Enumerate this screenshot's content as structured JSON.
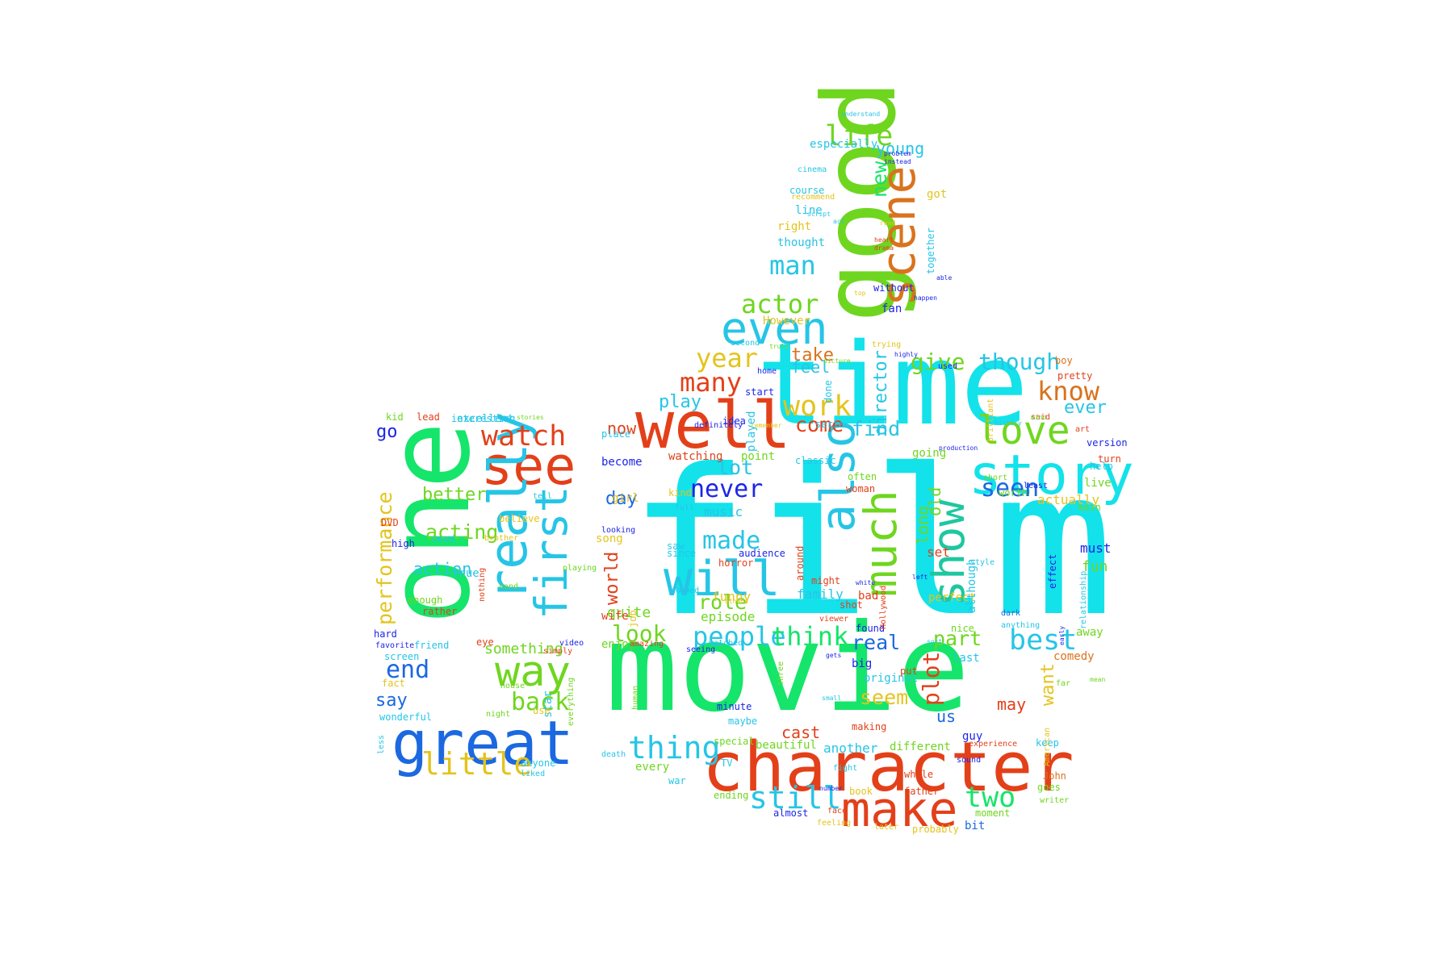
{
  "wordcloud": {
    "shape": "thumbs-up",
    "palette": [
      "#13e2ea",
      "#15e56a",
      "#e3401a",
      "#6fd61f",
      "#1b68e0",
      "#e3c41c",
      "#d9731d",
      "#1c25e8",
      "#26c5e6"
    ],
    "words": [
      {
        "text": "film",
        "color": "#13e2ea"
      },
      {
        "text": "movie",
        "color": "#15e56a"
      },
      {
        "text": "time",
        "color": "#13e2ea"
      },
      {
        "text": "one",
        "color": "#15e56a"
      },
      {
        "text": "good",
        "color": "#6fd61f"
      },
      {
        "text": "character",
        "color": "#e3401a"
      },
      {
        "text": "well",
        "color": "#e3401a"
      },
      {
        "text": "great",
        "color": "#1b68e0"
      },
      {
        "text": "story",
        "color": "#13e2ea"
      },
      {
        "text": "see",
        "color": "#e3401a"
      },
      {
        "text": "really",
        "color": "#26c5e6"
      },
      {
        "text": "also",
        "color": "#26c5e6"
      },
      {
        "text": "make",
        "color": "#e3401a"
      },
      {
        "text": "scene",
        "color": "#d9731d"
      },
      {
        "text": "will",
        "color": "#26c5e6"
      },
      {
        "text": "even",
        "color": "#26c5e6"
      },
      {
        "text": "much",
        "color": "#6fd61f"
      },
      {
        "text": "first",
        "color": "#26c5e6"
      },
      {
        "text": "show",
        "color": "#1ec7a0"
      },
      {
        "text": "love",
        "color": "#6fd61f"
      },
      {
        "text": "way",
        "color": "#6fd61f"
      },
      {
        "text": "little",
        "color": "#e3c41c"
      },
      {
        "text": "watch",
        "color": "#e3401a"
      },
      {
        "text": "life",
        "color": "#6fd61f"
      },
      {
        "text": "people",
        "color": "#26c5e6"
      },
      {
        "text": "best",
        "color": "#26c5e6"
      },
      {
        "text": "made",
        "color": "#26c5e6"
      },
      {
        "text": "still",
        "color": "#26c5e6"
      },
      {
        "text": "two",
        "color": "#15e56a"
      },
      {
        "text": "thing",
        "color": "#26c5e6"
      },
      {
        "text": "actor",
        "color": "#6fd61f"
      },
      {
        "text": "work",
        "color": "#e3c41c"
      },
      {
        "text": "man",
        "color": "#26c5e6"
      },
      {
        "text": "year",
        "color": "#e3c41c"
      },
      {
        "text": "many",
        "color": "#e3401a"
      },
      {
        "text": "know",
        "color": "#d9731d"
      },
      {
        "text": "seen",
        "color": "#1b68e0"
      },
      {
        "text": "think",
        "color": "#15e56a"
      },
      {
        "text": "never",
        "color": "#1c25e8"
      },
      {
        "text": "end",
        "color": "#1b68e0"
      },
      {
        "text": "back",
        "color": "#6fd61f"
      },
      {
        "text": "acting",
        "color": "#6fd61f"
      },
      {
        "text": "performance",
        "color": "#e3c41c"
      },
      {
        "text": "give",
        "color": "#6fd61f"
      },
      {
        "text": "though",
        "color": "#26c5e6"
      },
      {
        "text": "ever",
        "color": "#26c5e6"
      },
      {
        "text": "plot",
        "color": "#e3401a"
      },
      {
        "text": "part",
        "color": "#6fd61f"
      },
      {
        "text": "look",
        "color": "#6fd61f"
      },
      {
        "text": "role",
        "color": "#6fd61f"
      },
      {
        "text": "come",
        "color": "#e3401a"
      },
      {
        "text": "find",
        "color": "#26c5e6"
      },
      {
        "text": "real",
        "color": "#1b68e0"
      },
      {
        "text": "seem",
        "color": "#e3c41c"
      },
      {
        "text": "director",
        "color": "#26c5e6"
      },
      {
        "text": "new",
        "color": "#15e56a"
      },
      {
        "text": "young",
        "color": "#26c5e6"
      },
      {
        "text": "take",
        "color": "#d9731d"
      },
      {
        "text": "lot",
        "color": "#26c5e6"
      },
      {
        "text": "play",
        "color": "#26c5e6"
      },
      {
        "text": "day",
        "color": "#1b68e0"
      },
      {
        "text": "better",
        "color": "#6fd61f"
      },
      {
        "text": "say",
        "color": "#1b68e0"
      },
      {
        "text": "go",
        "color": "#1c25e8"
      },
      {
        "text": "world",
        "color": "#e3401a"
      },
      {
        "text": "now",
        "color": "#e3401a"
      },
      {
        "text": "quite",
        "color": "#6fd61f"
      },
      {
        "text": "action",
        "color": "#26c5e6"
      },
      {
        "text": "want",
        "color": "#e3c41c"
      },
      {
        "text": "us",
        "color": "#1b68e0"
      },
      {
        "text": "may",
        "color": "#e3401a"
      },
      {
        "text": "cast",
        "color": "#e3401a"
      },
      {
        "text": "feel",
        "color": "#26c5e6"
      },
      {
        "text": "long",
        "color": "#6fd61f"
      },
      {
        "text": "old",
        "color": "#6fd61f"
      },
      {
        "text": "something",
        "color": "#6fd61f"
      },
      {
        "text": "actually",
        "color": "#e3c41c"
      },
      {
        "text": "family",
        "color": "#26c5e6"
      },
      {
        "text": "funny",
        "color": "#e3c41c"
      },
      {
        "text": "music",
        "color": "#26c5e6"
      },
      {
        "text": "episode",
        "color": "#6fd61f"
      },
      {
        "text": "set",
        "color": "#e3401a"
      },
      {
        "text": "fun",
        "color": "#6fd61f"
      },
      {
        "text": "must",
        "color": "#1c25e8"
      },
      {
        "text": "interesting",
        "color": "#26c5e6"
      },
      {
        "text": "excellent",
        "color": "#26c5e6"
      },
      {
        "text": "another",
        "color": "#26c5e6"
      },
      {
        "text": "different",
        "color": "#6fd61f"
      },
      {
        "text": "beautiful",
        "color": "#6fd61f"
      },
      {
        "text": "book",
        "color": "#e3c41c"
      },
      {
        "text": "father",
        "color": "#e3401a"
      },
      {
        "text": "whole",
        "color": "#e3401a"
      },
      {
        "text": "guy",
        "color": "#1c25e8"
      },
      {
        "text": "bit",
        "color": "#1b68e0"
      },
      {
        "text": "probably",
        "color": "#e3c41c"
      },
      {
        "text": "moment",
        "color": "#6fd61f"
      },
      {
        "text": "almost",
        "color": "#1c25e8"
      },
      {
        "text": "ending",
        "color": "#6fd61f"
      },
      {
        "text": "every",
        "color": "#6fd61f"
      },
      {
        "text": "war",
        "color": "#26c5e6"
      },
      {
        "text": "TV",
        "color": "#26c5e6"
      },
      {
        "text": "special",
        "color": "#6fd61f"
      },
      {
        "text": "minute",
        "color": "#1c25e8"
      },
      {
        "text": "maybe",
        "color": "#26c5e6"
      },
      {
        "text": "original",
        "color": "#26c5e6"
      },
      {
        "text": "making",
        "color": "#e3401a"
      },
      {
        "text": "big",
        "color": "#1c25e8"
      },
      {
        "text": "found",
        "color": "#1c25e8"
      },
      {
        "text": "put",
        "color": "#e3401a"
      },
      {
        "text": "bad",
        "color": "#e3401a"
      },
      {
        "text": "shot",
        "color": "#e3401a"
      },
      {
        "text": "might",
        "color": "#e3401a"
      },
      {
        "text": "around",
        "color": "#e3401a"
      },
      {
        "text": "perfect",
        "color": "#e3c41c"
      },
      {
        "text": "last",
        "color": "#26c5e6"
      },
      {
        "text": "comedy",
        "color": "#d9731d"
      },
      {
        "text": "away",
        "color": "#6fd61f"
      },
      {
        "text": "keep",
        "color": "#26c5e6"
      },
      {
        "text": "John",
        "color": "#d9731d"
      },
      {
        "text": "goes",
        "color": "#6fd61f"
      },
      {
        "text": "writer",
        "color": "#6fd61f"
      },
      {
        "text": "although",
        "color": "#26c5e6"
      },
      {
        "text": "effect",
        "color": "#1c25e8"
      },
      {
        "text": "anything",
        "color": "#26c5e6"
      },
      {
        "text": "dark",
        "color": "#1b68e0"
      },
      {
        "text": "nice",
        "color": "#6fd61f"
      },
      {
        "text": "Hollywood",
        "color": "#e3401a"
      },
      {
        "text": "woman",
        "color": "#e3401a"
      },
      {
        "text": "girl",
        "color": "#e3c41c"
      },
      {
        "text": "song",
        "color": "#e3c41c"
      },
      {
        "text": "job",
        "color": "#e3c41c"
      },
      {
        "text": "wife",
        "color": "#e3401a"
      },
      {
        "text": "enjoy",
        "color": "#6fd61f"
      },
      {
        "text": "amazing",
        "color": "#e3401a"
      },
      {
        "text": "seeing",
        "color": "#1c25e8"
      },
      {
        "text": "watched",
        "color": "#26c5e6"
      },
      {
        "text": "saw",
        "color": "#26c5e6"
      },
      {
        "text": "since",
        "color": "#26c5e6"
      },
      {
        "text": "loved",
        "color": "#26c5e6"
      },
      {
        "text": "horror",
        "color": "#e3401a"
      },
      {
        "text": "audience",
        "color": "#1c25e8"
      },
      {
        "text": "kind",
        "color": "#e3c41c"
      },
      {
        "text": "full",
        "color": "#26c5e6"
      },
      {
        "text": "point",
        "color": "#6fd61f"
      },
      {
        "text": "classic",
        "color": "#26c5e6"
      },
      {
        "text": "often",
        "color": "#6fd61f"
      },
      {
        "text": "going",
        "color": "#6fd61f"
      },
      {
        "text": "watching",
        "color": "#e3401a"
      },
      {
        "text": "become",
        "color": "#1c25e8"
      },
      {
        "text": "place",
        "color": "#26c5e6"
      },
      {
        "text": "idea",
        "color": "#1c25e8"
      },
      {
        "text": "start",
        "color": "#1c25e8"
      },
      {
        "text": "serie",
        "color": "#26c5e6"
      },
      {
        "text": "done",
        "color": "#26c5e6"
      },
      {
        "text": "home",
        "color": "#1c25e8"
      },
      {
        "text": "played",
        "color": "#26c5e6"
      },
      {
        "text": "definitely",
        "color": "#1c25e8"
      },
      {
        "text": "However",
        "color": "#e3c41c"
      },
      {
        "text": "thought",
        "color": "#26c5e6"
      },
      {
        "text": "right",
        "color": "#e3c41c"
      },
      {
        "text": "line",
        "color": "#26c5e6"
      },
      {
        "text": "course",
        "color": "#26c5e6"
      },
      {
        "text": "especially",
        "color": "#26c5e6"
      },
      {
        "text": "cinema",
        "color": "#26c5e6"
      },
      {
        "text": "recommend",
        "color": "#e3c41c"
      },
      {
        "text": "without",
        "color": "#1c25e8"
      },
      {
        "text": "fan",
        "color": "#1c25e8"
      },
      {
        "text": "together",
        "color": "#26c5e6"
      },
      {
        "text": "got",
        "color": "#e3c41c"
      },
      {
        "text": "second",
        "color": "#26c5e6"
      },
      {
        "text": "trying",
        "color": "#e3c41c"
      },
      {
        "text": "pretty",
        "color": "#e3401a"
      },
      {
        "text": "boy",
        "color": "#d9731d"
      },
      {
        "text": "used",
        "color": "#1c25e8"
      },
      {
        "text": "turn",
        "color": "#e3401a"
      },
      {
        "text": "version",
        "color": "#1c25e8"
      },
      {
        "text": "help",
        "color": "#26c5e6"
      },
      {
        "text": "live",
        "color": "#6fd61f"
      },
      {
        "text": "worth",
        "color": "#6fd61f"
      },
      {
        "text": "least",
        "color": "#1c25e8"
      },
      {
        "text": "said",
        "color": "#e3401a"
      },
      {
        "text": "art",
        "color": "#e3401a"
      },
      {
        "text": "main",
        "color": "#6fd61f"
      },
      {
        "text": "relationship",
        "color": "#26c5e6"
      },
      {
        "text": "far",
        "color": "#6fd61f"
      },
      {
        "text": "American",
        "color": "#e3c41c"
      },
      {
        "text": "experience",
        "color": "#e3401a"
      },
      {
        "text": "sound",
        "color": "#1c25e8"
      },
      {
        "text": "three",
        "color": "#6fd61f"
      },
      {
        "text": "fight",
        "color": "#26c5e6"
      },
      {
        "text": "face",
        "color": "#e3401a"
      },
      {
        "text": "feeling",
        "color": "#e3c41c"
      },
      {
        "text": "later",
        "color": "#e3c41c"
      },
      {
        "text": "death",
        "color": "#26c5e6"
      },
      {
        "text": "rather",
        "color": "#e3401a"
      },
      {
        "text": "enough",
        "color": "#6fd61f"
      },
      {
        "text": "nothing",
        "color": "#e3401a"
      },
      {
        "text": "true",
        "color": "#26c5e6"
      },
      {
        "text": "need",
        "color": "#26c5e6"
      },
      {
        "text": "believe",
        "color": "#e3c41c"
      },
      {
        "text": "brother",
        "color": "#e3c41c"
      },
      {
        "text": "hand",
        "color": "#6fd61f"
      },
      {
        "text": "tell",
        "color": "#26c5e6"
      },
      {
        "text": "star",
        "color": "#26c5e6"
      },
      {
        "text": "use",
        "color": "#e3c41c"
      },
      {
        "text": "night",
        "color": "#6fd61f"
      },
      {
        "text": "wonderful",
        "color": "#26c5e6"
      },
      {
        "text": "fact",
        "color": "#e3c41c"
      },
      {
        "text": "screen",
        "color": "#26c5e6"
      },
      {
        "text": "hard",
        "color": "#1c25e8"
      },
      {
        "text": "favorite",
        "color": "#1c25e8"
      },
      {
        "text": "friend",
        "color": "#26c5e6"
      },
      {
        "text": "eye",
        "color": "#e3401a"
      },
      {
        "text": "house",
        "color": "#6fd61f"
      },
      {
        "text": "anyone",
        "color": "#26c5e6"
      },
      {
        "text": "liked",
        "color": "#26c5e6"
      },
      {
        "text": "DVD",
        "color": "#e3401a"
      },
      {
        "text": "high",
        "color": "#1c25e8"
      },
      {
        "text": "kid",
        "color": "#6fd61f"
      },
      {
        "text": "lead",
        "color": "#e3401a"
      },
      {
        "text": "stories",
        "color": "#6fd61f"
      },
      {
        "text": "simply",
        "color": "#e3401a"
      },
      {
        "text": "everything",
        "color": "#6fd61f"
      },
      {
        "text": "video",
        "color": "#1c25e8"
      },
      {
        "text": "playing",
        "color": "#6fd61f"
      },
      {
        "text": "less",
        "color": "#26c5e6"
      },
      {
        "text": "understand",
        "color": "#26c5e6"
      },
      {
        "text": "problem",
        "color": "#1c25e8"
      },
      {
        "text": "instead",
        "color": "#1c25e8"
      },
      {
        "text": "script",
        "color": "#26c5e6"
      },
      {
        "text": "act",
        "color": "#26c5e6"
      },
      {
        "text": "read",
        "color": "#e3c41c"
      },
      {
        "text": "heart",
        "color": "#e3401a"
      },
      {
        "text": "drama",
        "color": "#e3401a"
      },
      {
        "text": "top",
        "color": "#e3c41c"
      },
      {
        "text": "able",
        "color": "#1c25e8"
      },
      {
        "text": "happen",
        "color": "#1c25e8"
      },
      {
        "text": "truly",
        "color": "#6fd61f"
      },
      {
        "text": "picture",
        "color": "#6fd61f"
      },
      {
        "text": "highly",
        "color": "#1c25e8"
      },
      {
        "text": "history",
        "color": "#26c5e6"
      },
      {
        "text": "mind",
        "color": "#6fd61f"
      },
      {
        "text": "production",
        "color": "#1c25e8"
      },
      {
        "text": "brilliant",
        "color": "#e3c41c"
      },
      {
        "text": "short",
        "color": "#6fd61f"
      },
      {
        "text": "style",
        "color": "#26c5e6"
      },
      {
        "text": "left",
        "color": "#1c25e8"
      },
      {
        "text": "sort",
        "color": "#26c5e6"
      },
      {
        "text": "viewer",
        "color": "#e3401a"
      },
      {
        "text": "black",
        "color": "#26c5e6"
      },
      {
        "text": "others",
        "color": "#e3c41c"
      },
      {
        "text": "white",
        "color": "#1c25e8"
      },
      {
        "text": "looking",
        "color": "#1c25e8"
      },
      {
        "text": "human",
        "color": "#6fd61f"
      },
      {
        "text": "small",
        "color": "#26c5e6"
      },
      {
        "text": "gets",
        "color": "#1c25e8"
      },
      {
        "text": "mean",
        "color": "#6fd61f"
      },
      {
        "text": "number",
        "color": "#1c25e8"
      },
      {
        "text": "early",
        "color": "#1c25e8"
      },
      {
        "text": "remember",
        "color": "#e3c41c"
      }
    ]
  }
}
